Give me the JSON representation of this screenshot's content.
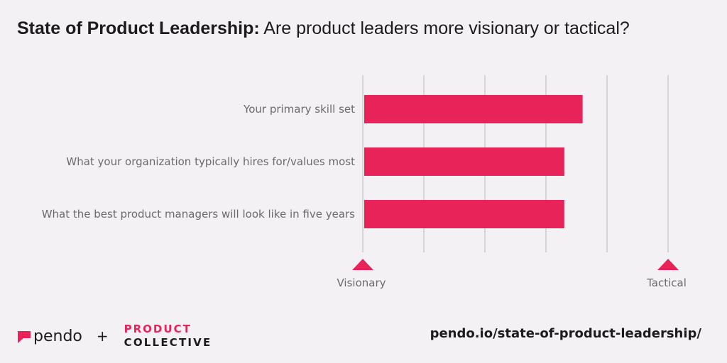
{
  "header": {
    "title_bold": "State of Product Leadership:",
    "title_rest": " Are product leaders more visionary or tactical?"
  },
  "chart_data": {
    "type": "bar",
    "orientation": "horizontal",
    "categories": [
      "Your primary skill set",
      "What your organization typically hires for/values most",
      "What the best product managers will look like in five years"
    ],
    "values": [
      3.6,
      3.3,
      3.3
    ],
    "xlim": [
      0,
      5
    ],
    "scale_labels": {
      "min": "Visionary",
      "max": "Tactical"
    },
    "grid": true,
    "bar_color": "#e8235a"
  },
  "footer": {
    "pendo_text": "pendo",
    "plus": "+",
    "pc_top": "PRODUCT",
    "pc_bottom": "COLLECTIVE",
    "url": "pendo.io/state-of-product-leadership/"
  },
  "colors": {
    "accent": "#e8235a",
    "text": "#1c1c1c",
    "muted": "#6b6b6b",
    "grid": "#b9b9b9"
  }
}
